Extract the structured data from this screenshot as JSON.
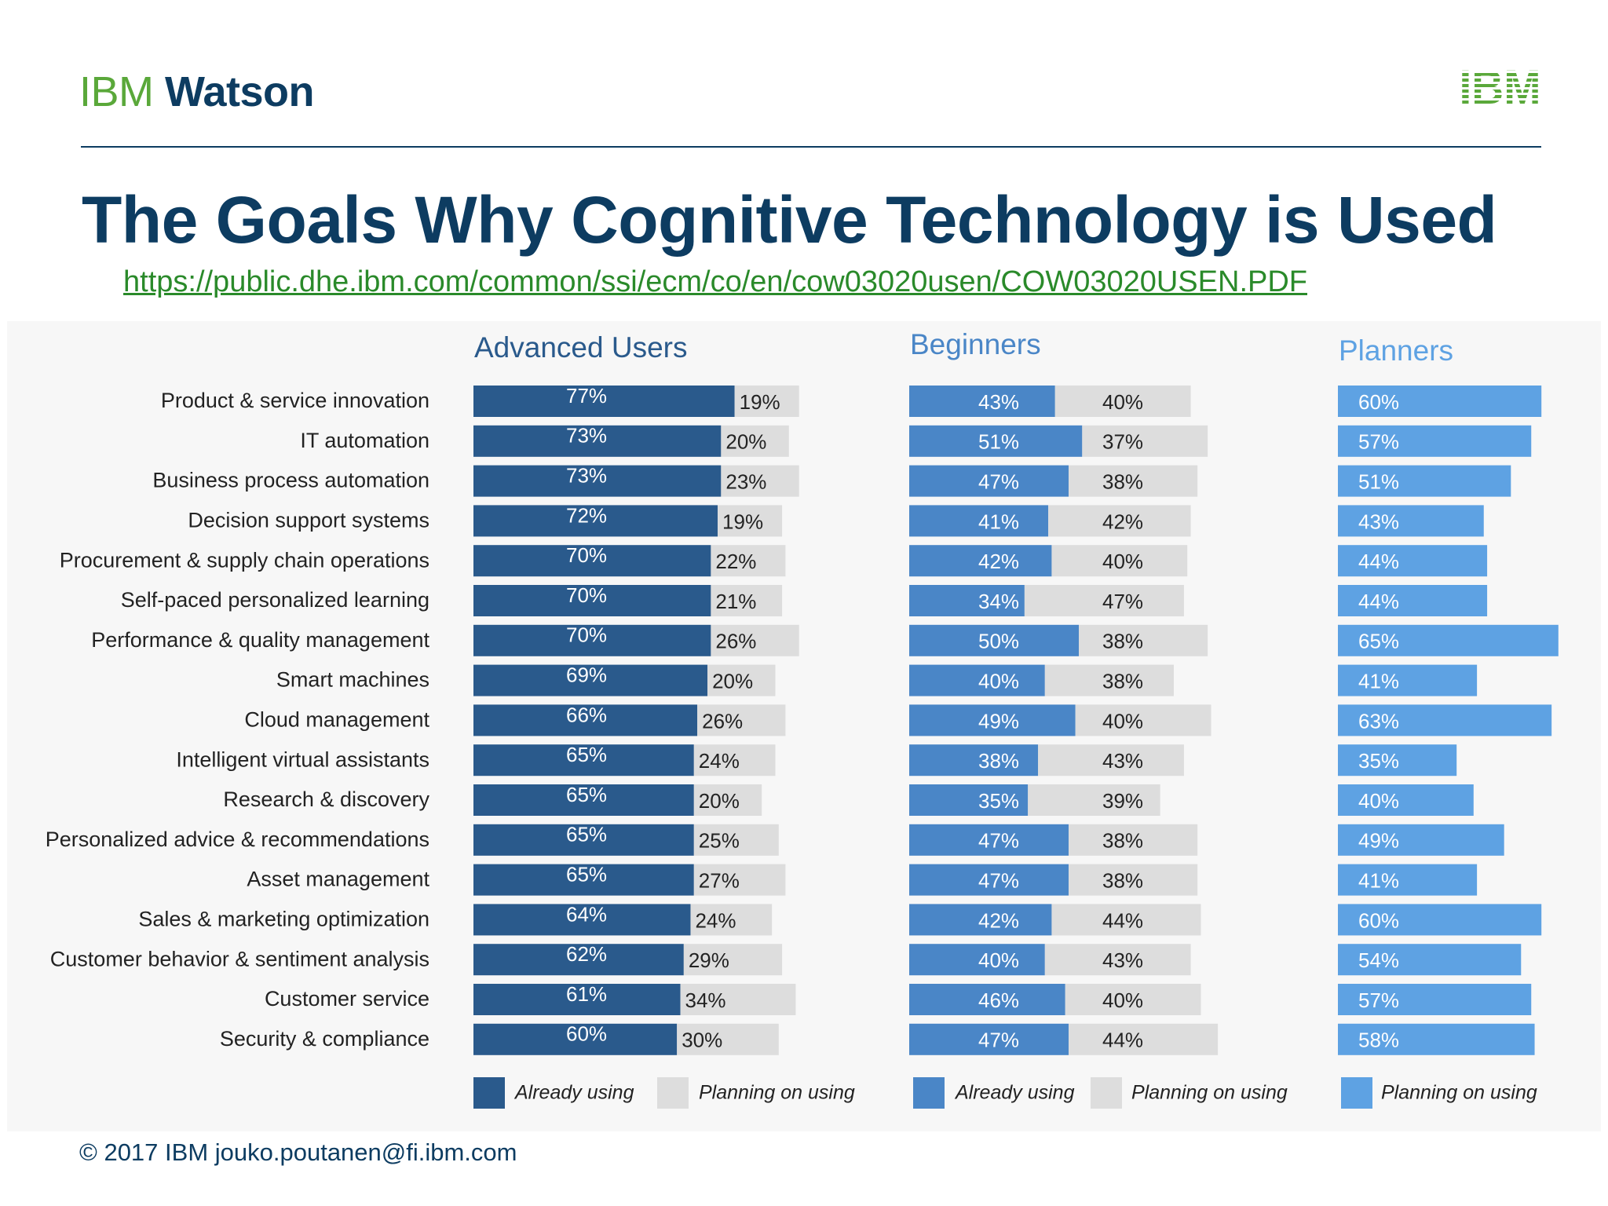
{
  "header": {
    "brand_ibm": "IBM",
    "brand_watson": "Watson",
    "logo_text": "IBM"
  },
  "page_title": "The Goals Why Cognitive Technology is Used",
  "source_url": "https://public.dhe.ibm.com/common/ssi/ecm/co/en/cow03020usen/COW03020USEN.PDF",
  "footer": "© 2017 IBM  jouko.poutanen@fi.ibm.com",
  "colors": {
    "navy": "#0d3c61",
    "advanced_already": "#2a5a8c",
    "beginners_already": "#4a86c7",
    "planners": "#5ea2e3",
    "planning_gray": "#dddddd",
    "brand_green": "#5aa83a"
  },
  "chart_data": {
    "type": "bar",
    "orientation": "horizontal",
    "stacked": true,
    "categories": [
      "Product & service innovation",
      "IT automation",
      "Business process automation",
      "Decision support systems",
      "Procurement & supply chain operations",
      "Self-paced personalized learning",
      "Performance & quality management",
      "Smart machines",
      "Cloud management",
      "Intelligent virtual assistants",
      "Research & discovery",
      "Personalized advice & recommendations",
      "Asset management",
      "Sales & marketing optimization",
      "Customer behavior & sentiment analysis",
      "Customer service",
      "Security & compliance"
    ],
    "panels": [
      {
        "title": "Advanced Users",
        "series": [
          {
            "name": "Already using",
            "color": "#2a5a8c",
            "values": [
              77,
              73,
              73,
              72,
              70,
              70,
              70,
              69,
              66,
              65,
              65,
              65,
              65,
              64,
              62,
              61,
              60
            ]
          },
          {
            "name": "Planning on using",
            "color": "#dddddd",
            "values": [
              19,
              20,
              23,
              19,
              22,
              21,
              26,
              20,
              26,
              24,
              20,
              25,
              27,
              24,
              29,
              34,
              30
            ]
          }
        ]
      },
      {
        "title": "Beginners",
        "series": [
          {
            "name": "Already using",
            "color": "#4a86c7",
            "values": [
              43,
              51,
              47,
              41,
              42,
              34,
              50,
              40,
              49,
              38,
              35,
              47,
              47,
              42,
              40,
              46,
              47
            ]
          },
          {
            "name": "Planning on using",
            "color": "#dddddd",
            "values": [
              40,
              37,
              38,
              42,
              40,
              47,
              38,
              38,
              40,
              43,
              39,
              38,
              38,
              44,
              43,
              40,
              44
            ]
          }
        ]
      },
      {
        "title": "Planners",
        "series": [
          {
            "name": "Planning on using",
            "color": "#5ea2e3",
            "values": [
              60,
              57,
              51,
              43,
              44,
              44,
              65,
              41,
              63,
              35,
              40,
              49,
              41,
              60,
              54,
              57,
              58
            ]
          }
        ]
      }
    ],
    "value_suffix": "%",
    "legend_position": "bottom"
  }
}
